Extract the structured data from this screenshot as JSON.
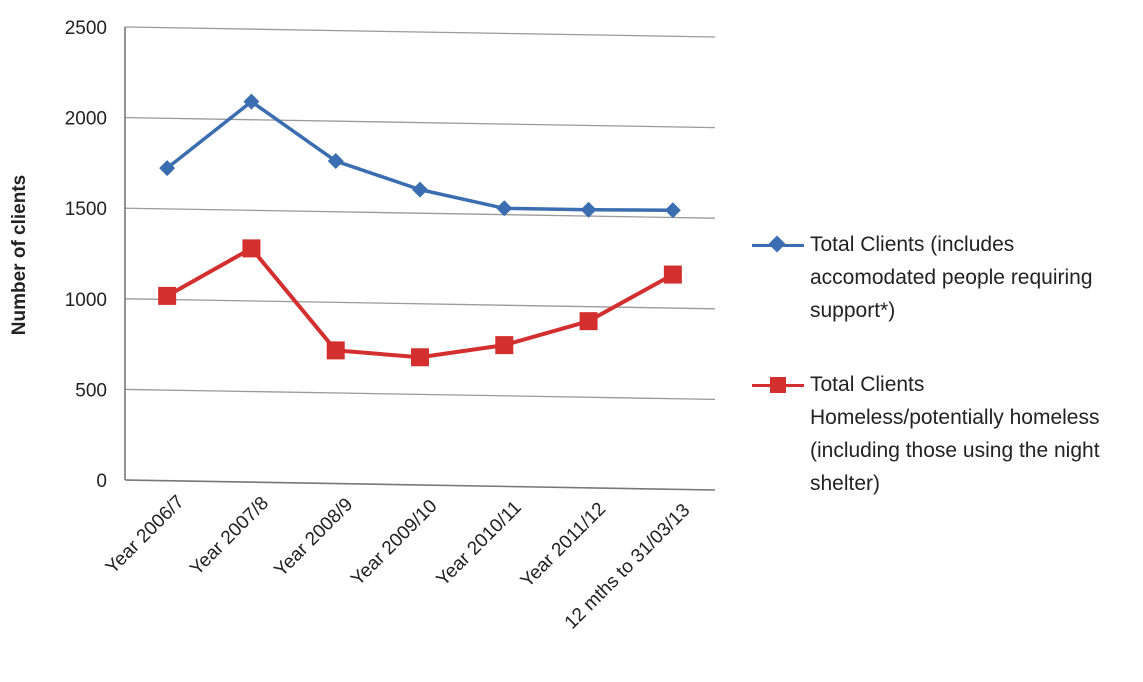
{
  "chart_data": {
    "type": "line",
    "ylabel": "Number of clients",
    "xlabel": "",
    "ylim": [
      0,
      2500
    ],
    "yticks": [
      0,
      500,
      1000,
      1500,
      2000,
      2500
    ],
    "grid": true,
    "legend_position": "right",
    "categories": [
      "Year 2006/7",
      "Year 2007/8",
      "Year 2008/9",
      "Year 2009/10",
      "Year 2010/11",
      "Year 2011/12",
      "12 mths to 31/03/13"
    ],
    "series": [
      {
        "name": "Total Clients (includes accomodated people requiring support*)",
        "name_lines": [
          "Total Clients (includes",
          "accomodated people requiring",
          "support*)"
        ],
        "marker": "diamond",
        "color": "#3B6EB0",
        "values": [
          1725,
          2100,
          1780,
          1630,
          1535,
          1535,
          1540
        ]
      },
      {
        "name": "Total Clients Homeless/potentially homeless (including those using the night shelter)",
        "name_lines": [
          "Total Clients",
          "Homeless/potentially homeless",
          "(including those using the night",
          "shelter)"
        ],
        "marker": "square",
        "color": "#D32F2F",
        "values": [
          1020,
          1290,
          735,
          705,
          780,
          920,
          1185
        ]
      }
    ]
  }
}
